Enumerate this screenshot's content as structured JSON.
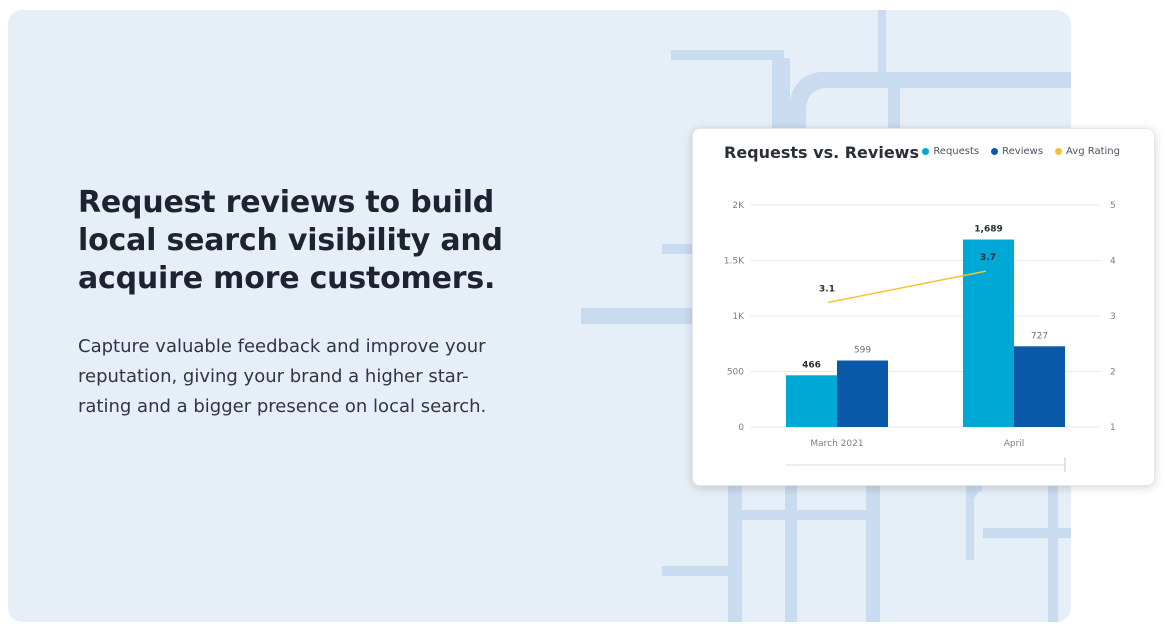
{
  "hero": {
    "headline": "Request reviews to build local search visibility and acquire more customers.",
    "body": "Capture valuable feedback and improve your reputation, giving your brand a higher star-rating and a bigger presence on local search."
  },
  "colors": {
    "panel_bg": "#e6eef8",
    "decor": "#c9dbee",
    "requests": "#00a8d6",
    "reviews": "#0a58a8",
    "avg_rating": "#f2c530"
  },
  "chart_data": {
    "type": "bar",
    "title": "Requests vs. Reviews",
    "categories": [
      "March 2021",
      "April"
    ],
    "series": [
      {
        "name": "Requests",
        "kind": "bar",
        "axis": "left",
        "values": [
          466,
          1689
        ],
        "labels": [
          "466",
          "1,689"
        ],
        "color": "#00a8d6"
      },
      {
        "name": "Reviews",
        "kind": "bar",
        "axis": "left",
        "values": [
          599,
          727
        ],
        "labels": [
          "599",
          "727"
        ],
        "color": "#0a58a8"
      },
      {
        "name": "Avg Rating",
        "kind": "line",
        "axis": "right",
        "values": [
          3.1,
          3.7
        ],
        "labels": [
          "3.1",
          "3.7"
        ],
        "color": "#f2c530"
      }
    ],
    "y_left": {
      "ylim": [
        0,
        2000
      ],
      "ticks": [
        0,
        500,
        1000,
        1500,
        2000
      ],
      "tick_labels": [
        "0",
        "500",
        "1K",
        "1.5K",
        "2K"
      ]
    },
    "y_right": {
      "ylim": [
        1,
        5
      ],
      "ticks": [
        1,
        2,
        3,
        4,
        5
      ],
      "tick_labels": [
        "1",
        "2",
        "3",
        "4",
        "5"
      ]
    },
    "grid": true,
    "legend_position": "top-right"
  }
}
